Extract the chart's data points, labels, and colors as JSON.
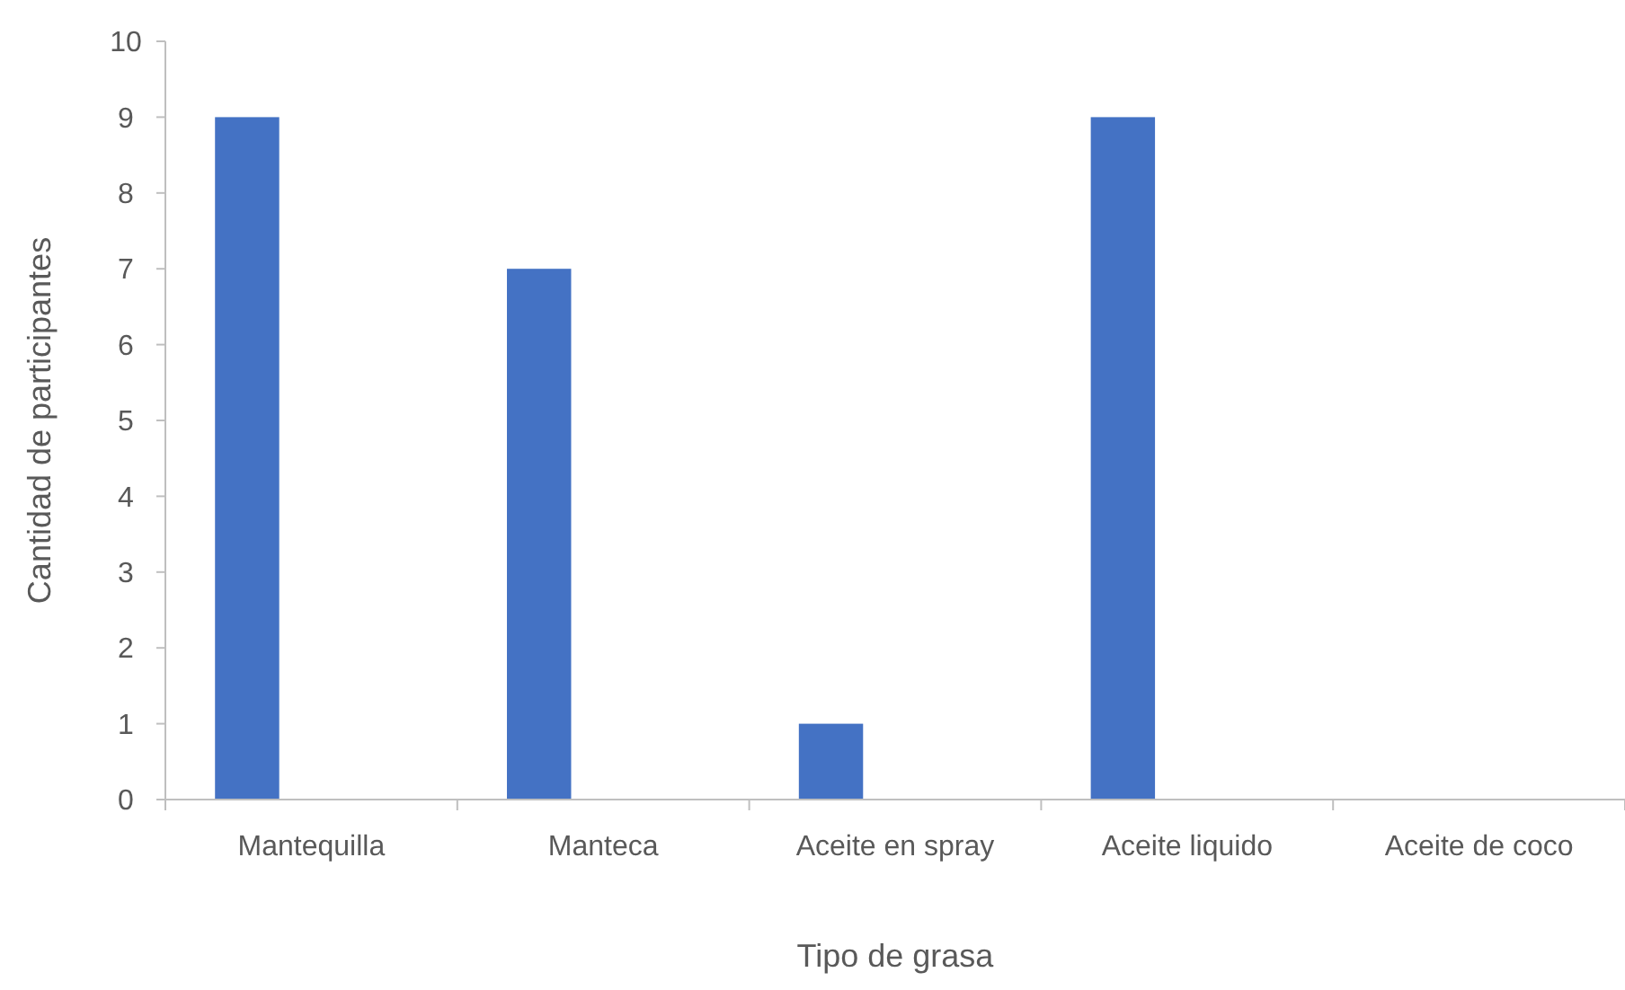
{
  "chart_data": {
    "type": "bar",
    "xlabel": "Tipo de grasa",
    "ylabel": "Cantidad de participantes",
    "categories": [
      "Mantequilla",
      "Manteca",
      "Aceite en spray",
      "Aceite liquido",
      "Aceite de coco"
    ],
    "values": [
      9,
      7,
      1,
      9,
      0
    ],
    "color": "#4472c4",
    "ylim": [
      0,
      10
    ],
    "yticks": [
      0,
      1,
      2,
      3,
      4,
      5,
      6,
      7,
      8,
      9,
      10
    ]
  }
}
